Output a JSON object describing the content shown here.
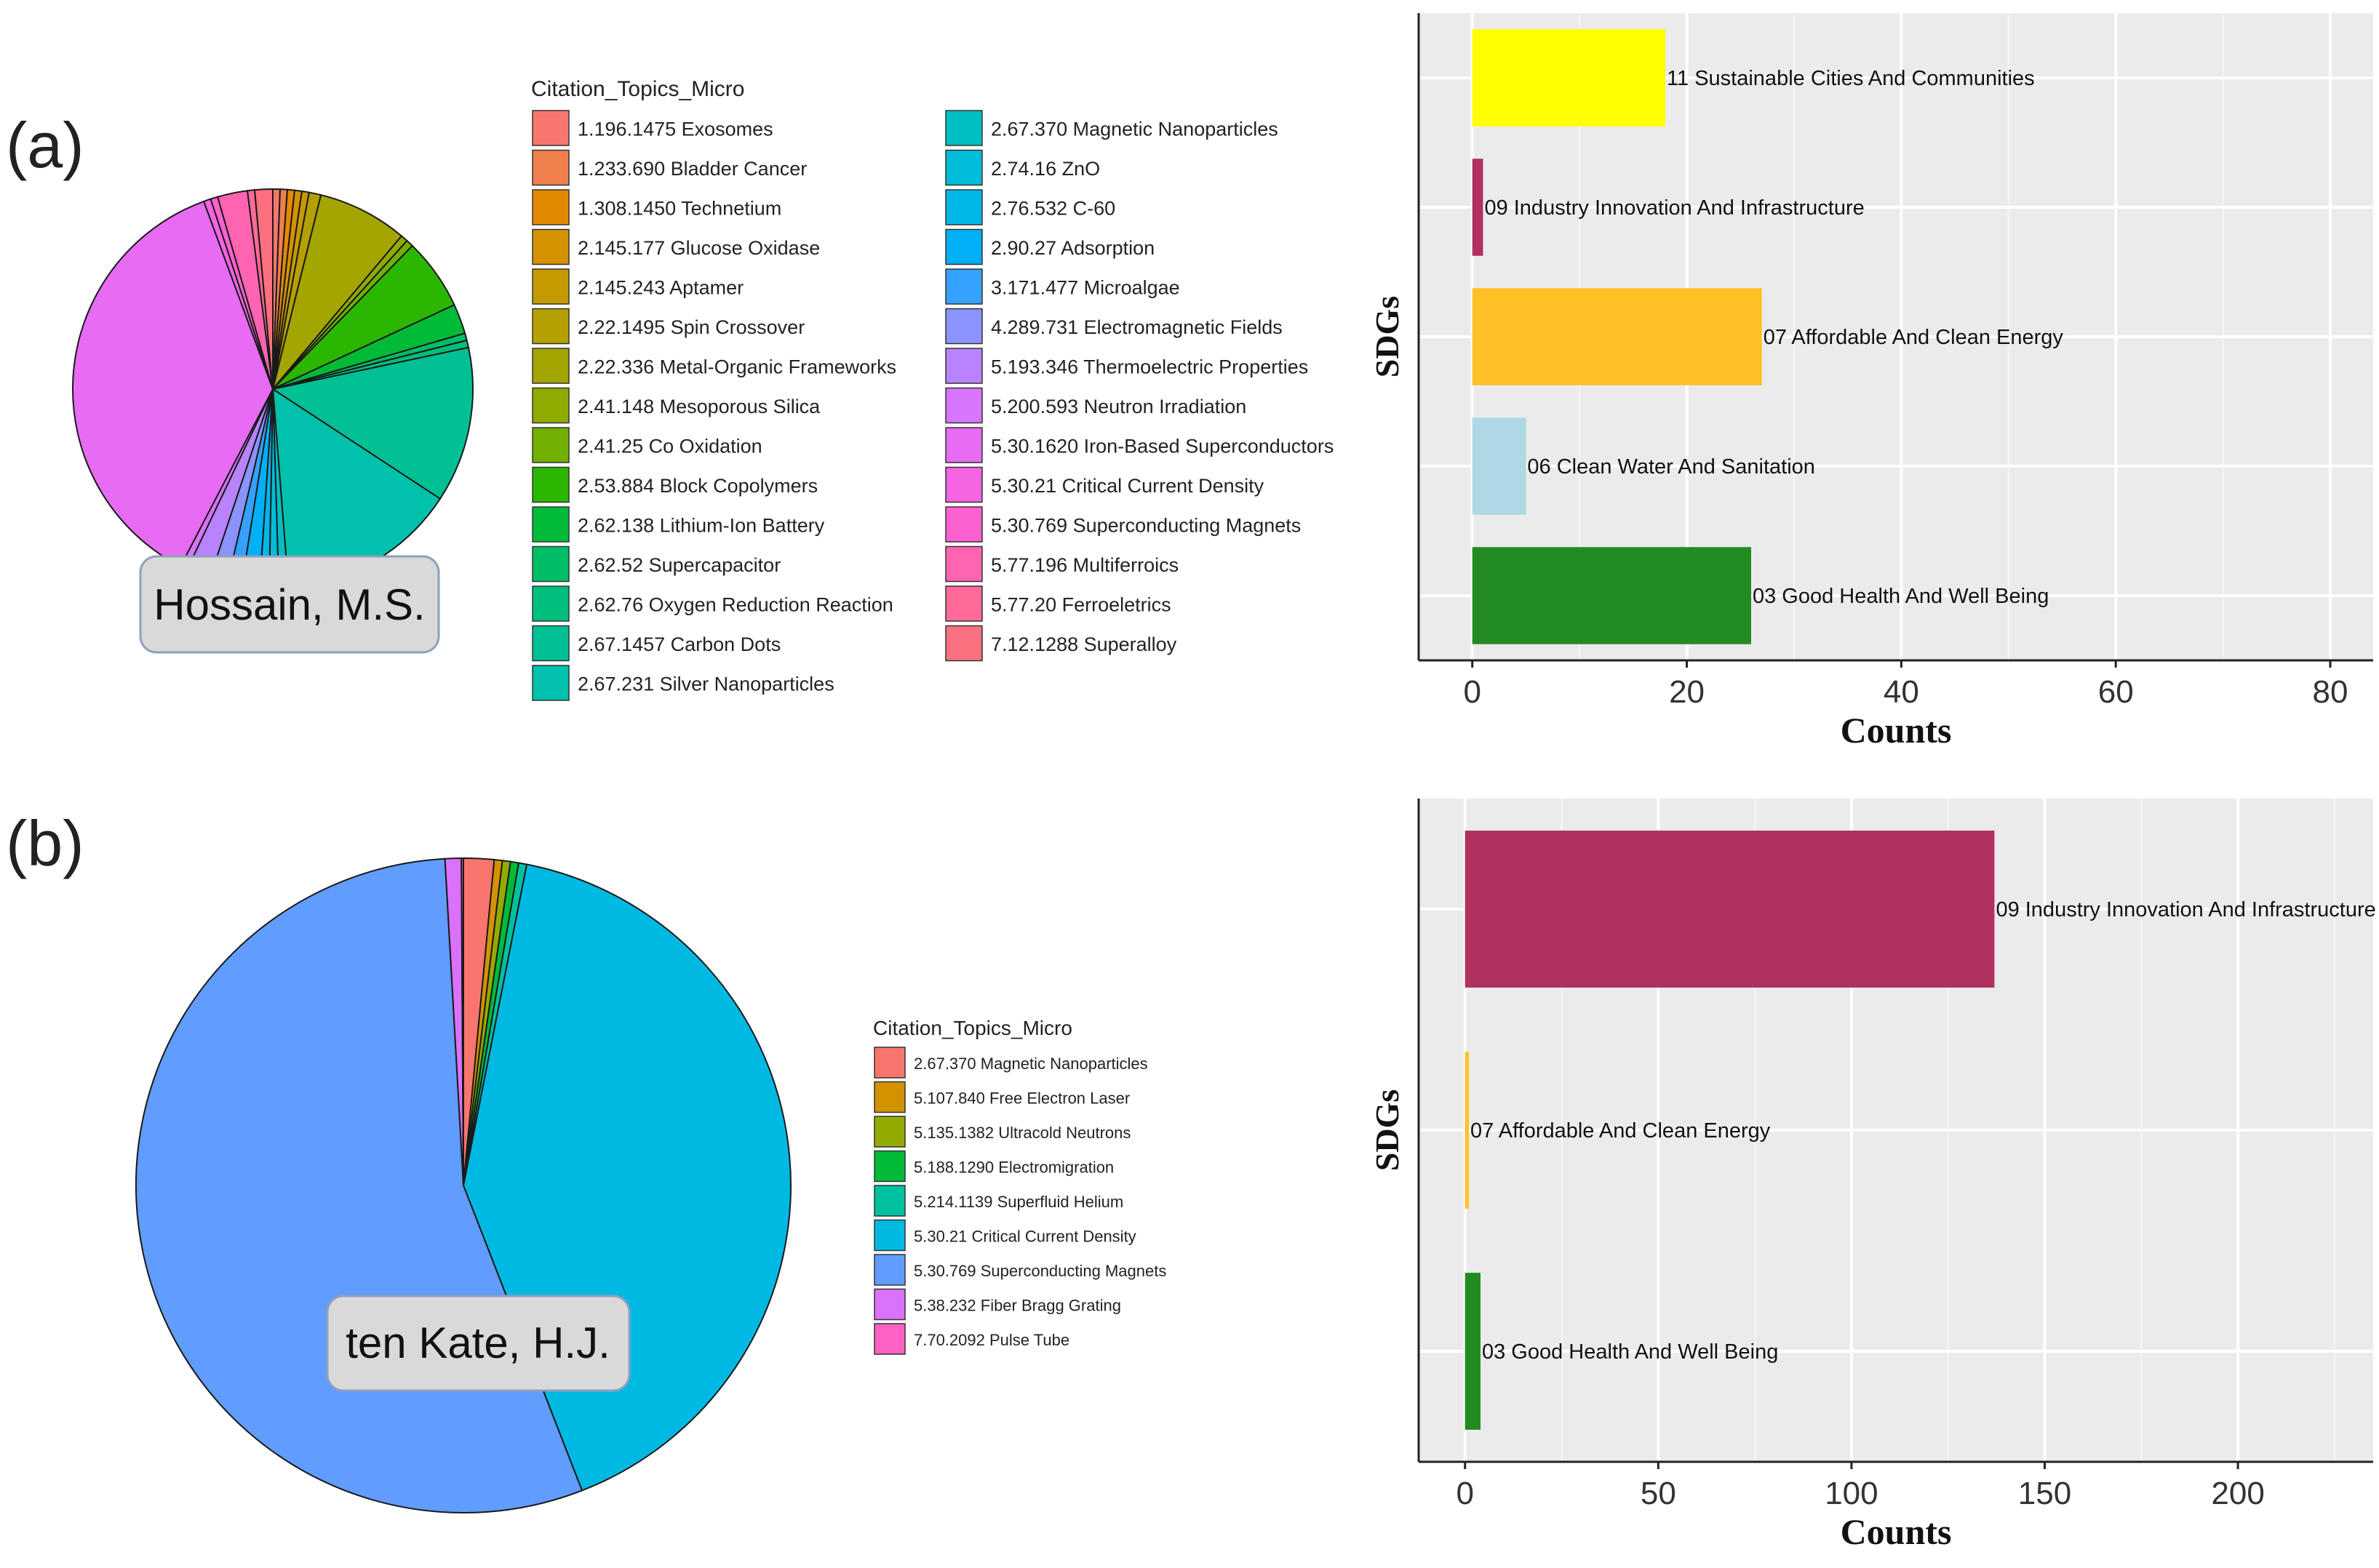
{
  "panels": [
    {
      "label": "(a)",
      "author": "Hossain, M.S.",
      "legend_title": "Citation_Topics_Micro",
      "legend_items": [
        {
          "label": "1.196.1475 Exosomes",
          "color": "#F8766D"
        },
        {
          "label": "1.233.690 Bladder Cancer",
          "color": "#F07F4E"
        },
        {
          "label": "1.308.1450 Technetium",
          "color": "#E38900"
        },
        {
          "label": "2.145.177 Glucose Oxidase",
          "color": "#D49200"
        },
        {
          "label": "2.145.243 Aptamer",
          "color": "#C49A00"
        },
        {
          "label": "2.22.1495 Spin Crossover",
          "color": "#B4A000"
        },
        {
          "label": "2.22.336 Metal-Organic Frameworks",
          "color": "#A3A500"
        },
        {
          "label": "2.41.148 Mesoporous Silica",
          "color": "#8FAA00"
        },
        {
          "label": "2.41.25 Co Oxidation",
          "color": "#72B000"
        },
        {
          "label": "2.53.884 Block Copolymers",
          "color": "#2BB600"
        },
        {
          "label": "2.62.138 Lithium-Ion Battery",
          "color": "#00BA38"
        },
        {
          "label": "2.62.52 Supercapacitor",
          "color": "#00BE67"
        },
        {
          "label": "2.62.76 Oxygen Reduction Reaction",
          "color": "#00BF7D"
        },
        {
          "label": "2.67.1457 Carbon Dots",
          "color": "#00C094"
        },
        {
          "label": "2.67.231 Silver Nanoparticles",
          "color": "#00C1AB"
        },
        {
          "label": "2.67.370 Magnetic Nanoparticles",
          "color": "#00BFC4"
        },
        {
          "label": "2.74.16 ZnO",
          "color": "#00BCD8"
        },
        {
          "label": "2.76.532 C-60",
          "color": "#00B7E9"
        },
        {
          "label": "2.90.27 Adsorption",
          "color": "#00B0F6"
        },
        {
          "label": "3.171.477 Microalgae",
          "color": "#35A2FF"
        },
        {
          "label": "4.289.731 Electromagnetic Fields",
          "color": "#8B93FF"
        },
        {
          "label": "5.193.346 Thermoelectric Properties",
          "color": "#B983FF"
        },
        {
          "label": "5.200.593 Neutron Irradiation",
          "color": "#D775FF"
        },
        {
          "label": "5.30.1620 Iron-Based Superconductors",
          "color": "#E76BF3"
        },
        {
          "label": "5.30.21 Critical Current Density",
          "color": "#F564E3"
        },
        {
          "label": "5.30.769 Superconducting Magnets",
          "color": "#FD61D1"
        },
        {
          "label": "5.77.196 Multiferroics",
          "color": "#FF64B0"
        },
        {
          "label": "5.77.20 Ferroeletrics",
          "color": "#FF6A98"
        },
        {
          "label": "7.12.1288 Superalloy",
          "color": "#FC717F"
        }
      ]
    },
    {
      "label": "(b)",
      "author": "ten Kate, H.J.",
      "legend_title": "Citation_Topics_Micro",
      "legend_items": [
        {
          "label": "2.67.370 Magnetic Nanoparticles",
          "color": "#F8766D"
        },
        {
          "label": "5.107.840 Free Electron Laser",
          "color": "#D39200"
        },
        {
          "label": "5.135.1382 Ultracold Neutrons",
          "color": "#93AA00"
        },
        {
          "label": "5.188.1290 Electromigration",
          "color": "#00BA38"
        },
        {
          "label": "5.214.1139 Superfluid Helium",
          "color": "#00C19F"
        },
        {
          "label": "5.30.21 Critical Current Density",
          "color": "#00B9E3"
        },
        {
          "label": "5.30.769 Superconducting Magnets",
          "color": "#619CFF"
        },
        {
          "label": "5.38.232 Fiber Bragg Grating",
          "color": "#DB72FB"
        },
        {
          "label": "7.70.2092 Pulse Tube",
          "color": "#FF61C3"
        }
      ]
    }
  ],
  "chart_data": [
    {
      "type": "pie",
      "panel": "(a)",
      "title": "Hossain, M.S.",
      "legend_title": "Citation_Topics_Micro",
      "slices": [
        {
          "label": "1.196.1475 Exosomes",
          "value": 0.6
        },
        {
          "label": "1.233.690 Bladder Cancer",
          "value": 0.6
        },
        {
          "label": "1.308.1450 Technetium",
          "value": 0.6
        },
        {
          "label": "2.145.177 Glucose Oxidase",
          "value": 0.6
        },
        {
          "label": "2.145.243 Aptamer",
          "value": 0.6
        },
        {
          "label": "2.22.1495 Spin Crossover",
          "value": 1.0
        },
        {
          "label": "2.22.336 Metal-Organic Frameworks",
          "value": 7.5
        },
        {
          "label": "2.41.148 Mesoporous Silica",
          "value": 0.6
        },
        {
          "label": "2.41.25 Co Oxidation",
          "value": 0.6
        },
        {
          "label": "2.53.884 Block Copolymers",
          "value": 6.0
        },
        {
          "label": "2.62.138 Lithium-Ion Battery",
          "value": 2.5
        },
        {
          "label": "2.62.52 Supercapacitor",
          "value": 0.6
        },
        {
          "label": "2.62.76 Oxygen Reduction Reaction",
          "value": 0.6
        },
        {
          "label": "2.67.1457 Carbon Dots",
          "value": 13.0
        },
        {
          "label": "2.67.231 Silver Nanoparticles",
          "value": 15.0
        },
        {
          "label": "2.67.370 Magnetic Nanoparticles",
          "value": 0.8
        },
        {
          "label": "2.74.16 ZnO",
          "value": 0.8
        },
        {
          "label": "2.76.532 C-60",
          "value": 0.8
        },
        {
          "label": "2.90.27 Adsorption",
          "value": 1.5
        },
        {
          "label": "3.171.477 Microalgae",
          "value": 1.2
        },
        {
          "label": "4.289.731 Electromagnetic Fields",
          "value": 1.5
        },
        {
          "label": "5.193.346 Thermoelectric Properties",
          "value": 2.0
        },
        {
          "label": "5.200.593 Neutron Irradiation",
          "value": 0.6
        },
        {
          "label": "5.30.1620 Iron-Based Superconductors",
          "value": 38.0
        },
        {
          "label": "5.30.21 Critical Current Density",
          "value": 0.6
        },
        {
          "label": "5.30.769 Superconducting Magnets",
          "value": 0.6
        },
        {
          "label": "5.77.196 Multiferroics",
          "value": 2.5
        },
        {
          "label": "5.77.20 Ferroeletrics",
          "value": 0.6
        },
        {
          "label": "7.12.1288 Superalloy",
          "value": 1.5
        }
      ]
    },
    {
      "type": "bar",
      "orientation": "horizontal",
      "panel": "(a)",
      "xlabel": "Counts",
      "ylabel": "SDGs",
      "xlim": [
        -5,
        84
      ],
      "xticks": [
        0,
        20,
        40,
        60,
        80
      ],
      "bars": [
        {
          "label": "11 Sustainable Cities And Communities",
          "value": 18,
          "color": "#FFFF00"
        },
        {
          "label": "09 Industry Innovation And Infrastructure",
          "value": 1,
          "color": "#B03060"
        },
        {
          "label": "07 Affordable And Clean Energy",
          "value": 27,
          "color": "#FFC125"
        },
        {
          "label": "06 Clean Water And Sanitation",
          "value": 5,
          "color": "#ADD8E6"
        },
        {
          "label": "03 Good Health And Well Being",
          "value": 26,
          "color": "#228B22"
        }
      ]
    },
    {
      "type": "pie",
      "panel": "(b)",
      "title": "ten Kate, H.J.",
      "legend_title": "Citation_Topics_Micro",
      "slices": [
        {
          "label": "2.67.370 Magnetic Nanoparticles",
          "value": 1.5
        },
        {
          "label": "5.107.840 Free Electron Laser",
          "value": 0.4
        },
        {
          "label": "5.135.1382 Ultracold Neutrons",
          "value": 0.4
        },
        {
          "label": "5.188.1290 Electromigration",
          "value": 0.4
        },
        {
          "label": "5.214.1139 Superfluid Helium",
          "value": 0.4
        },
        {
          "label": "5.30.21 Critical Current Density",
          "value": 41.0
        },
        {
          "label": "5.30.769 Superconducting Magnets",
          "value": 55.0
        },
        {
          "label": "5.38.232 Fiber Bragg Grating",
          "value": 0.8
        },
        {
          "label": "7.70.2092 Pulse Tube",
          "value": 0.1
        }
      ]
    },
    {
      "type": "bar",
      "orientation": "horizontal",
      "panel": "(b)",
      "xlabel": "Counts",
      "ylabel": "SDGs",
      "xlim": [
        -12,
        235
      ],
      "xticks": [
        0,
        50,
        100,
        150,
        200
      ],
      "bars": [
        {
          "label": "09 Industry Innovation And Infrastructure",
          "value": 137,
          "color": "#B03060"
        },
        {
          "label": "07 Affordable And Clean Energy",
          "value": 1,
          "color": "#FFC125"
        },
        {
          "label": "03 Good Health And Well Being",
          "value": 4,
          "color": "#228B22"
        }
      ]
    }
  ]
}
